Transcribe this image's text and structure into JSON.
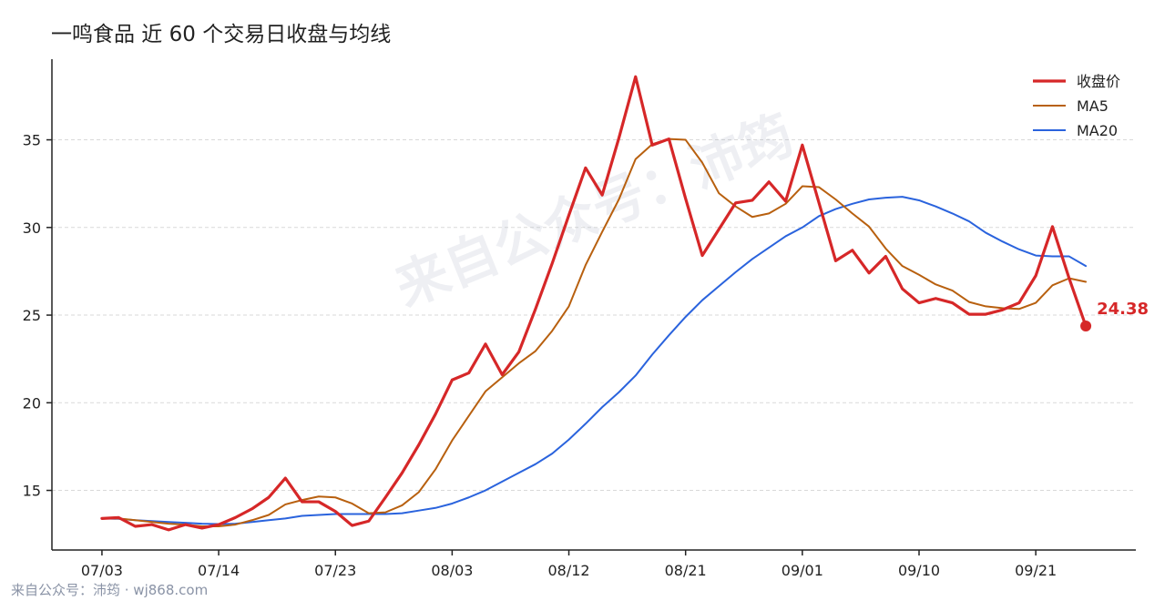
{
  "chart_data": {
    "type": "line",
    "title": "一鸣食品 近 60 个交易日收盘与均线",
    "xlabel": "",
    "ylabel": "",
    "x_tick_labels": [
      "07/03",
      "07/14",
      "07/23",
      "08/03",
      "08/12",
      "08/21",
      "09/01",
      "09/10",
      "09/21"
    ],
    "x_tick_index": [
      0,
      7,
      14,
      21,
      28,
      35,
      42,
      49,
      56
    ],
    "y_ticks": [
      15,
      20,
      25,
      30,
      35
    ],
    "xlim": [
      -3,
      62
    ],
    "ylim": [
      11.6,
      39.6
    ],
    "grid": "horizontal dashed",
    "legend_position": "top-right",
    "series": [
      {
        "name": "收盘价",
        "color": "#d62728",
        "values": [
          13.4,
          13.45,
          12.95,
          13.05,
          12.75,
          13.05,
          12.85,
          13.05,
          13.45,
          13.95,
          14.6,
          15.7,
          14.35,
          14.35,
          13.8,
          13.0,
          13.25,
          14.6,
          16.0,
          17.6,
          19.35,
          21.3,
          21.7,
          23.35,
          21.6,
          22.9,
          25.35,
          27.95,
          30.7,
          33.4,
          31.85,
          35.1,
          38.6,
          34.7,
          35.05,
          31.65,
          28.4,
          29.9,
          31.4,
          31.55,
          32.6,
          31.5,
          34.7,
          31.4,
          28.1,
          28.7,
          27.4,
          28.35,
          26.5,
          25.7,
          25.95,
          25.7,
          25.05,
          25.05,
          25.3,
          25.7,
          27.25,
          30.05,
          27.1,
          24.38
        ]
      },
      {
        "name": "MA5",
        "color": "#b8600f",
        "values": [
          13.4,
          13.4,
          13.3,
          13.2,
          13.1,
          13.05,
          12.95,
          12.95,
          13.05,
          13.3,
          13.6,
          14.2,
          14.45,
          14.65,
          14.6,
          14.25,
          13.7,
          13.75,
          14.15,
          14.9,
          16.2,
          17.85,
          19.25,
          20.65,
          21.45,
          22.25,
          22.95,
          24.1,
          25.5,
          27.85,
          29.75,
          31.6,
          33.9,
          34.75,
          35.05,
          35.0,
          33.7,
          31.95,
          31.2,
          30.6,
          30.8,
          31.35,
          32.35,
          32.3,
          31.6,
          30.8,
          30.05,
          28.8,
          27.8,
          27.3,
          26.75,
          26.4,
          25.75,
          25.5,
          25.4,
          25.35,
          25.7,
          26.7,
          27.1,
          26.9
        ]
      },
      {
        "name": "MA20",
        "color": "#2a63dd",
        "values": [
          13.4,
          13.38,
          13.3,
          13.25,
          13.2,
          13.15,
          13.1,
          13.08,
          13.1,
          13.2,
          13.3,
          13.4,
          13.55,
          13.6,
          13.65,
          13.65,
          13.65,
          13.65,
          13.7,
          13.85,
          14.0,
          14.25,
          14.6,
          15.0,
          15.5,
          16.0,
          16.5,
          17.1,
          17.9,
          18.8,
          19.75,
          20.6,
          21.55,
          22.75,
          23.85,
          24.9,
          25.85,
          26.65,
          27.45,
          28.2,
          28.85,
          29.5,
          30.0,
          30.65,
          31.05,
          31.35,
          31.6,
          31.7,
          31.75,
          31.55,
          31.2,
          30.8,
          30.35,
          29.7,
          29.2,
          28.75,
          28.4,
          28.35,
          28.35,
          27.8
        ]
      }
    ],
    "last_point": {
      "series": "收盘价",
      "index": 59,
      "value": 24.38,
      "label": "24.38"
    }
  },
  "watermark": "来自公众号：沛筠",
  "footer": "来自公众号：沛筠 · wj868.com"
}
